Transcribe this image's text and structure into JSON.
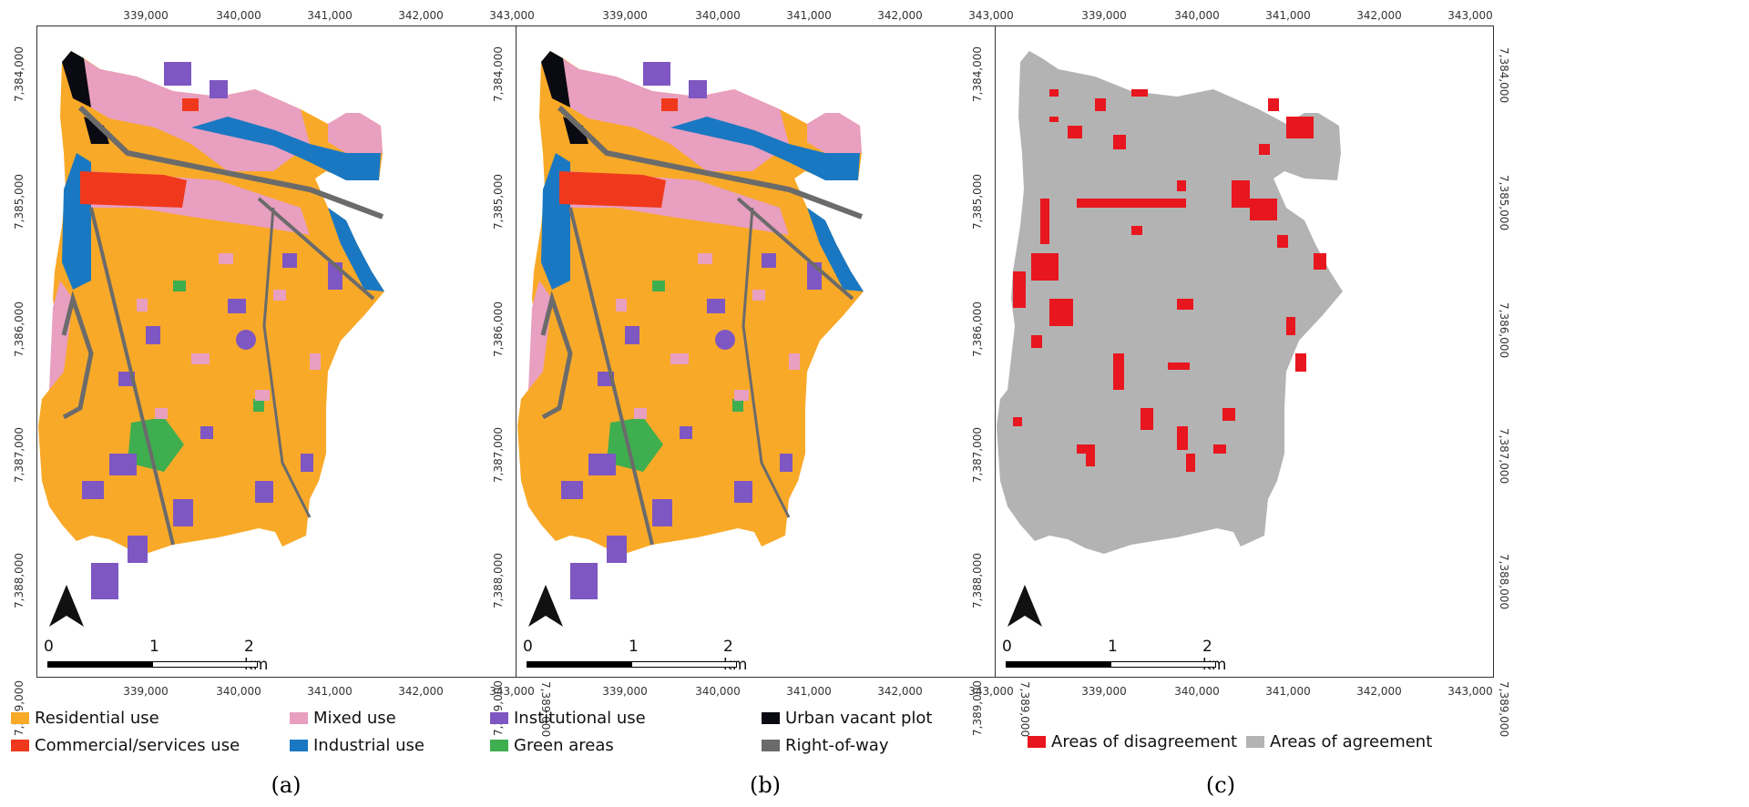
{
  "colors": {
    "residential": "#F9A928",
    "commercial": "#F0391C",
    "mixed": "#E89FC0",
    "industrial": "#1A78C2",
    "institutional": "#7E57C2",
    "green": "#3FAE4F",
    "vacant": "#0A0A12",
    "row": "#6B6B6B",
    "disagreement": "#E8161E",
    "agreement": "#B3B3B3"
  },
  "axes": {
    "x_ticks": [
      "339,000",
      "340,000",
      "341,000",
      "342,000",
      "343,000"
    ],
    "y_ticks": [
      "7,389,000",
      "7,388,000",
      "7,387,000",
      "7,386,000",
      "7,385,000",
      "7,384,000"
    ]
  },
  "scale_bar": {
    "labels": [
      "0",
      "1",
      "2 km"
    ]
  },
  "panels": [
    {
      "caption": "(a)",
      "legend": [
        {
          "label": "Residential use",
          "color_key": "residential"
        },
        {
          "label": "Commercial/services use",
          "color_key": "commercial"
        },
        {
          "label": "Mixed use",
          "color_key": "mixed"
        },
        {
          "label": "Industrial use",
          "color_key": "industrial"
        }
      ]
    },
    {
      "caption": "(b)",
      "legend": [
        {
          "label": "Institutional use",
          "color_key": "institutional"
        },
        {
          "label": "Green areas",
          "color_key": "green"
        },
        {
          "label": "Urban vacant plot",
          "color_key": "vacant"
        },
        {
          "label": "Right-of-way",
          "color_key": "row"
        }
      ]
    },
    {
      "caption": "(c)",
      "legend": [
        {
          "label": "Areas of disagreement",
          "color_key": "disagreement"
        },
        {
          "label": "Areas of agreement",
          "color_key": "agreement"
        }
      ]
    }
  ]
}
